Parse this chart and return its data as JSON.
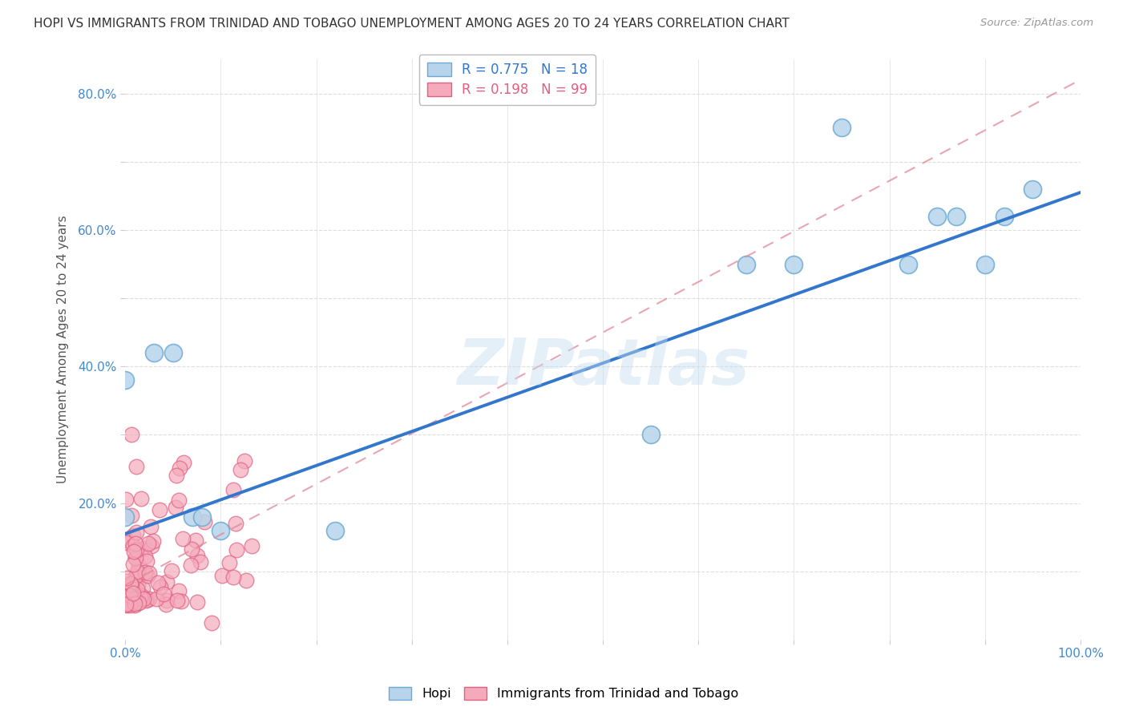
{
  "title": "HOPI VS IMMIGRANTS FROM TRINIDAD AND TOBAGO UNEMPLOYMENT AMONG AGES 20 TO 24 YEARS CORRELATION CHART",
  "source": "Source: ZipAtlas.com",
  "ylabel": "Unemployment Among Ages 20 to 24 years",
  "watermark": "ZIPatlas",
  "xlim": [
    0,
    1.0
  ],
  "ylim": [
    0,
    0.85
  ],
  "hopi_R": 0.775,
  "hopi_N": 18,
  "immig_R": 0.198,
  "immig_N": 99,
  "hopi_color": "#b8d4ea",
  "hopi_edge_color": "#6aaad4",
  "immig_color": "#f4aabb",
  "immig_edge_color": "#e06080",
  "trendline_hopi_color": "#3377cc",
  "trendline_immig_color": "#e08898",
  "hopi_x": [
    0.0,
    0.0,
    0.03,
    0.05,
    0.07,
    0.08,
    0.1,
    0.22,
    0.55,
    0.65,
    0.7,
    0.75,
    0.82,
    0.85,
    0.87,
    0.9,
    0.92,
    0.95
  ],
  "hopi_y": [
    0.18,
    0.38,
    0.42,
    0.42,
    0.18,
    0.18,
    0.16,
    0.16,
    0.3,
    0.55,
    0.55,
    0.75,
    0.55,
    0.62,
    0.62,
    0.55,
    0.62,
    0.66
  ],
  "hopi_trendline": [
    0.0,
    1.0,
    0.155,
    0.655
  ],
  "immig_trendline": [
    0.0,
    1.0,
    0.08,
    0.82
  ],
  "background_color": "#ffffff",
  "grid_color": "#dddddd",
  "ytick_positions": [
    0.1,
    0.2,
    0.3,
    0.4,
    0.5,
    0.6,
    0.7,
    0.8
  ],
  "ytick_labels": [
    "",
    "20.0%",
    "",
    "40.0%",
    "",
    "60.0%",
    "",
    "80.0%"
  ],
  "xtick_positions": [
    0.0,
    0.5,
    1.0
  ],
  "xtick_labels": [
    "0.0%",
    "",
    "100.0%"
  ]
}
